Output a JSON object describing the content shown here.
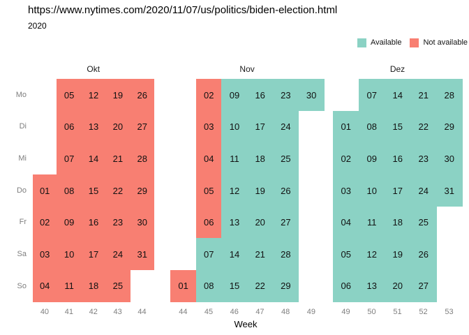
{
  "chart_data": {
    "type": "heatmap",
    "title": "https://www.nytimes.com/2020/11/07/us/politics/biden-election.html",
    "subtitle": "2020",
    "xlabel": "Week",
    "weekday_rows": [
      "Mo",
      "Di",
      "Mi",
      "Do",
      "Fr",
      "Sa",
      "So"
    ],
    "legend": [
      {
        "key": "a",
        "label": "Available"
      },
      {
        "key": "n",
        "label": "Not available"
      }
    ],
    "colors": {
      "a": "#8BD2C4",
      "n": "#F87F72"
    },
    "layout_hints": {
      "legend_position": "top-right",
      "grid": false,
      "week_axis_range": [
        "40",
        "53"
      ]
    },
    "months": [
      {
        "name": "Okt",
        "week_labels": [
          "40",
          "41",
          "42",
          "43",
          "44"
        ],
        "cells": [
          [
            null,
            {
              "day": "05",
              "status": "n"
            },
            {
              "day": "12",
              "status": "n"
            },
            {
              "day": "19",
              "status": "n"
            },
            {
              "day": "26",
              "status": "n"
            }
          ],
          [
            null,
            {
              "day": "06",
              "status": "n"
            },
            {
              "day": "13",
              "status": "n"
            },
            {
              "day": "20",
              "status": "n"
            },
            {
              "day": "27",
              "status": "n"
            }
          ],
          [
            null,
            {
              "day": "07",
              "status": "n"
            },
            {
              "day": "14",
              "status": "n"
            },
            {
              "day": "21",
              "status": "n"
            },
            {
              "day": "28",
              "status": "n"
            }
          ],
          [
            {
              "day": "01",
              "status": "n"
            },
            {
              "day": "08",
              "status": "n"
            },
            {
              "day": "15",
              "status": "n"
            },
            {
              "day": "22",
              "status": "n"
            },
            {
              "day": "29",
              "status": "n"
            }
          ],
          [
            {
              "day": "02",
              "status": "n"
            },
            {
              "day": "09",
              "status": "n"
            },
            {
              "day": "16",
              "status": "n"
            },
            {
              "day": "23",
              "status": "n"
            },
            {
              "day": "30",
              "status": "n"
            }
          ],
          [
            {
              "day": "03",
              "status": "n"
            },
            {
              "day": "10",
              "status": "n"
            },
            {
              "day": "17",
              "status": "n"
            },
            {
              "day": "24",
              "status": "n"
            },
            {
              "day": "31",
              "status": "n"
            }
          ],
          [
            {
              "day": "04",
              "status": "n"
            },
            {
              "day": "11",
              "status": "n"
            },
            {
              "day": "18",
              "status": "n"
            },
            {
              "day": "25",
              "status": "n"
            },
            null
          ]
        ]
      },
      {
        "name": "Nov",
        "week_labels": [
          "44",
          "45",
          "46",
          "47",
          "48",
          "49"
        ],
        "cells": [
          [
            null,
            {
              "day": "02",
              "status": "n"
            },
            {
              "day": "09",
              "status": "a"
            },
            {
              "day": "16",
              "status": "a"
            },
            {
              "day": "23",
              "status": "a"
            },
            {
              "day": "30",
              "status": "a"
            }
          ],
          [
            null,
            {
              "day": "03",
              "status": "n"
            },
            {
              "day": "10",
              "status": "a"
            },
            {
              "day": "17",
              "status": "a"
            },
            {
              "day": "24",
              "status": "a"
            },
            null
          ],
          [
            null,
            {
              "day": "04",
              "status": "n"
            },
            {
              "day": "11",
              "status": "a"
            },
            {
              "day": "18",
              "status": "a"
            },
            {
              "day": "25",
              "status": "a"
            },
            null
          ],
          [
            null,
            {
              "day": "05",
              "status": "n"
            },
            {
              "day": "12",
              "status": "a"
            },
            {
              "day": "19",
              "status": "a"
            },
            {
              "day": "26",
              "status": "a"
            },
            null
          ],
          [
            null,
            {
              "day": "06",
              "status": "n"
            },
            {
              "day": "13",
              "status": "a"
            },
            {
              "day": "20",
              "status": "a"
            },
            {
              "day": "27",
              "status": "a"
            },
            null
          ],
          [
            null,
            {
              "day": "07",
              "status": "a"
            },
            {
              "day": "14",
              "status": "a"
            },
            {
              "day": "21",
              "status": "a"
            },
            {
              "day": "28",
              "status": "a"
            },
            null
          ],
          [
            {
              "day": "01",
              "status": "n"
            },
            {
              "day": "08",
              "status": "a"
            },
            {
              "day": "15",
              "status": "a"
            },
            {
              "day": "22",
              "status": "a"
            },
            {
              "day": "29",
              "status": "a"
            },
            null
          ]
        ]
      },
      {
        "name": "Dez",
        "week_labels": [
          "49",
          "50",
          "51",
          "52",
          "53"
        ],
        "cells": [
          [
            null,
            {
              "day": "07",
              "status": "a"
            },
            {
              "day": "14",
              "status": "a"
            },
            {
              "day": "21",
              "status": "a"
            },
            {
              "day": "28",
              "status": "a"
            }
          ],
          [
            {
              "day": "01",
              "status": "a"
            },
            {
              "day": "08",
              "status": "a"
            },
            {
              "day": "15",
              "status": "a"
            },
            {
              "day": "22",
              "status": "a"
            },
            {
              "day": "29",
              "status": "a"
            }
          ],
          [
            {
              "day": "02",
              "status": "a"
            },
            {
              "day": "09",
              "status": "a"
            },
            {
              "day": "16",
              "status": "a"
            },
            {
              "day": "23",
              "status": "a"
            },
            {
              "day": "30",
              "status": "a"
            }
          ],
          [
            {
              "day": "03",
              "status": "a"
            },
            {
              "day": "10",
              "status": "a"
            },
            {
              "day": "17",
              "status": "a"
            },
            {
              "day": "24",
              "status": "a"
            },
            {
              "day": "31",
              "status": "a"
            }
          ],
          [
            {
              "day": "04",
              "status": "a"
            },
            {
              "day": "11",
              "status": "a"
            },
            {
              "day": "18",
              "status": "a"
            },
            {
              "day": "25",
              "status": "a"
            },
            null
          ],
          [
            {
              "day": "05",
              "status": "a"
            },
            {
              "day": "12",
              "status": "a"
            },
            {
              "day": "19",
              "status": "a"
            },
            {
              "day": "26",
              "status": "a"
            },
            null
          ],
          [
            {
              "day": "06",
              "status": "a"
            },
            {
              "day": "13",
              "status": "a"
            },
            {
              "day": "20",
              "status": "a"
            },
            {
              "day": "27",
              "status": "a"
            },
            null
          ]
        ]
      }
    ]
  }
}
